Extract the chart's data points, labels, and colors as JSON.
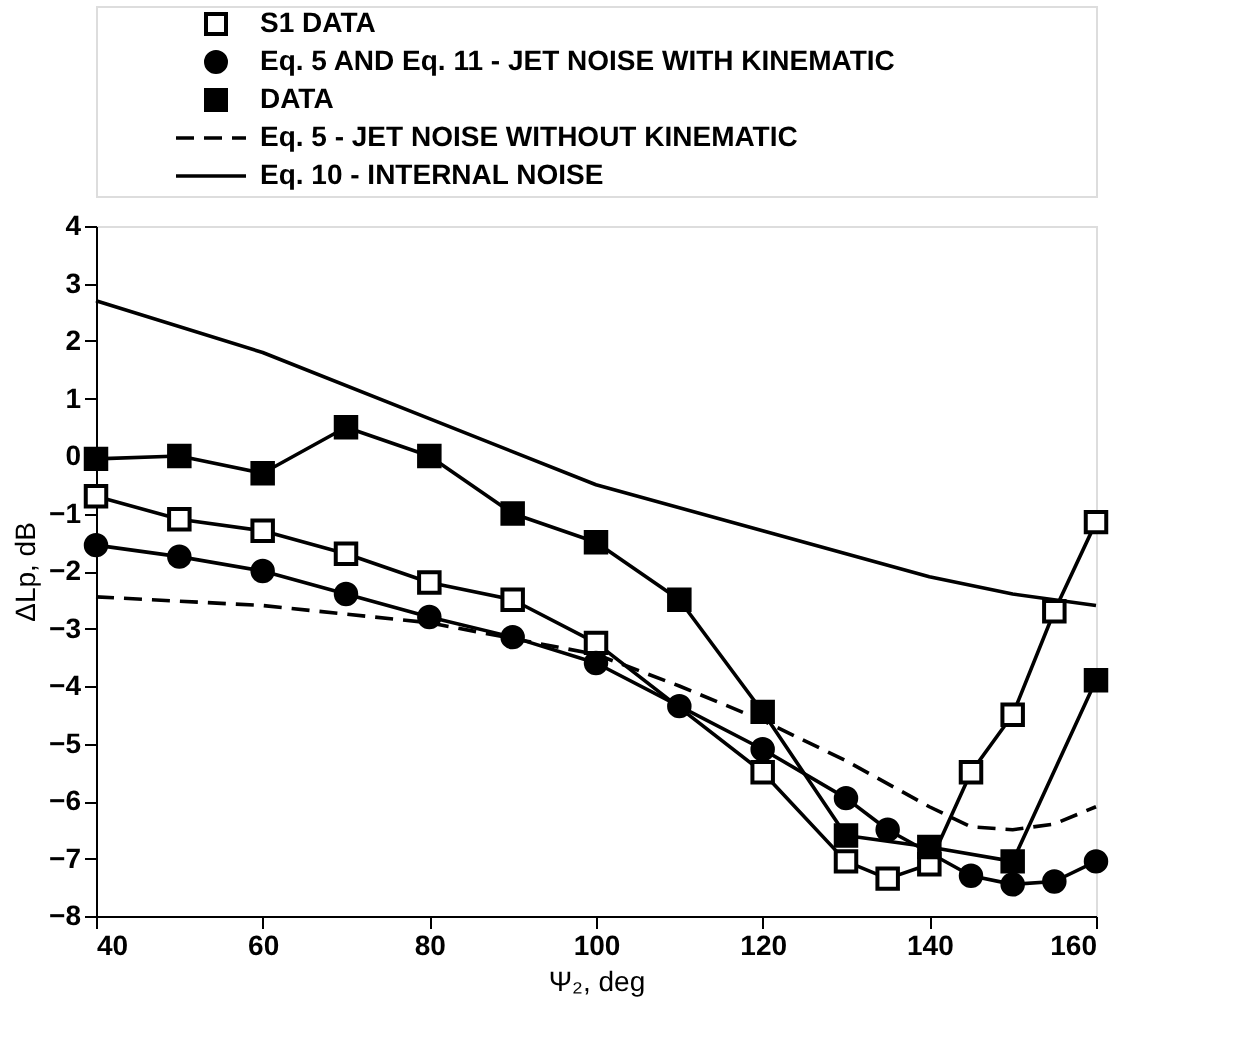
{
  "chart_data": {
    "type": "line",
    "xlabel": "Ψ₂, deg",
    "ylabel": "ΔLp, dB",
    "xlim": [
      40,
      160
    ],
    "xticks": [
      40,
      60,
      80,
      100,
      120,
      140,
      160
    ],
    "ylim": [
      -8,
      4
    ],
    "yticks": [
      -8,
      -7,
      -6,
      -5,
      -4,
      -3,
      -2,
      -1,
      0,
      1,
      2,
      3,
      4
    ],
    "grid": false,
    "legend": "top left",
    "series": [
      {
        "name": "S1 DATA",
        "color": "#ffffff",
        "marker": "square",
        "line_style": "solid",
        "x": [
          40,
          50,
          60,
          70,
          80,
          90,
          100,
          120,
          130,
          135,
          140,
          145,
          150,
          155,
          160
        ],
        "values": [
          -0.7,
          -1.1,
          -1.3,
          -1.7,
          -2.2,
          -2.5,
          -3.25,
          -5.5,
          -7.05,
          -7.35,
          -7.1,
          -5.5,
          -4.5,
          -2.7,
          -1.15
        ]
      },
      {
        "name": "Eq. 5 AND Eq. 11 - JET NOISE WITH KINEMATIC",
        "color": "#000000",
        "marker": "circle",
        "line_style": "solid",
        "x": [
          40,
          50,
          60,
          70,
          80,
          90,
          100,
          110,
          120,
          130,
          135,
          140,
          145,
          150,
          155,
          160
        ],
        "values": [
          -1.55,
          -1.75,
          -2.0,
          -2.4,
          -2.8,
          -3.15,
          -3.6,
          -4.35,
          -5.1,
          -5.95,
          -6.5,
          null,
          -7.3,
          -7.45,
          -7.4,
          -7.05
        ]
      },
      {
        "name": "DATA",
        "color": "#000000",
        "marker": "square",
        "line_style": "solid",
        "x": [
          40,
          50,
          60,
          70,
          80,
          90,
          100,
          110,
          120,
          130,
          140,
          150,
          160
        ],
        "values": [
          -0.05,
          0.0,
          -0.3,
          0.5,
          0.0,
          -1.0,
          -1.5,
          -2.5,
          -4.45,
          -6.6,
          -6.8,
          -7.05,
          -3.9
        ]
      },
      {
        "name": "Eq. 5 - JET NOISE WITHOUT KINEMATIC",
        "color": "#000000",
        "marker": "none",
        "line_style": "dashed",
        "x": [
          40,
          60,
          80,
          100,
          110,
          120,
          130,
          140,
          145,
          150,
          155,
          160
        ],
        "values": [
          -2.45,
          -2.6,
          -2.9,
          -3.45,
          -4.0,
          -4.6,
          -5.3,
          -6.1,
          -6.45,
          -6.5,
          -6.4,
          -6.1
        ]
      },
      {
        "name": "Eq. 10 - INTERNAL NOISE",
        "color": "#000000",
        "marker": "none",
        "line_style": "solid",
        "x": [
          40,
          60,
          80,
          100,
          120,
          140,
          150,
          160
        ],
        "values": [
          2.7,
          1.8,
          0.65,
          -0.5,
          -1.3,
          -2.1,
          -2.4,
          -2.6
        ]
      }
    ]
  }
}
